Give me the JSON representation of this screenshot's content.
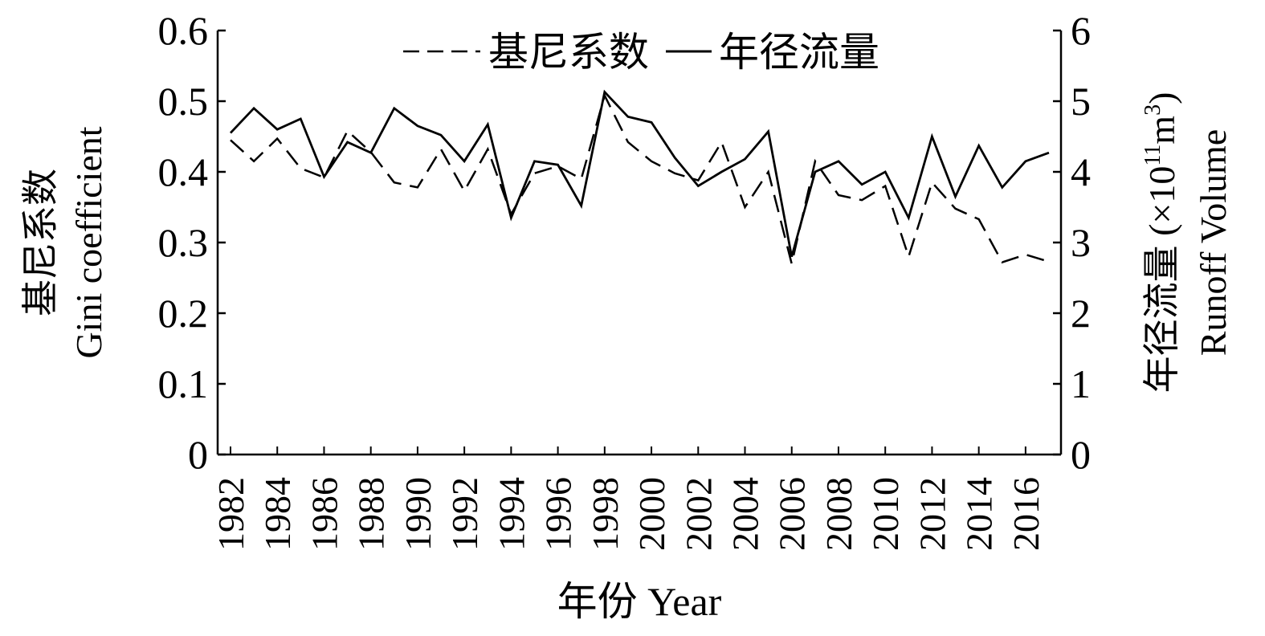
{
  "chart_data": {
    "type": "line",
    "legend": {
      "placement": "top-center",
      "items": [
        {
          "label": "基尼系数",
          "style": "dashed",
          "series": "gini"
        },
        {
          "label": "年径流量",
          "style": "solid",
          "series": "runoff"
        }
      ]
    },
    "x": {
      "label": "年份 Year",
      "tick_labels": [
        "1982",
        "1984",
        "1986",
        "1988",
        "1990",
        "1992",
        "1994",
        "1996",
        "1998",
        "2000",
        "2002",
        "2004",
        "2006",
        "2008",
        "2010",
        "2012",
        "2014",
        "2016"
      ],
      "years": [
        1982,
        1983,
        1984,
        1985,
        1986,
        1987,
        1988,
        1989,
        1990,
        1991,
        1992,
        1993,
        1994,
        1995,
        1996,
        1997,
        1998,
        1999,
        2000,
        2001,
        2002,
        2003,
        2004,
        2005,
        2006,
        2007,
        2008,
        2009,
        2010,
        2011,
        2012,
        2013,
        2014,
        2015,
        2016,
        2017
      ],
      "range": [
        1982,
        2017
      ]
    },
    "y_left": {
      "label_line1": "基尼系数",
      "label_line2": "Gini coefficient",
      "range": [
        0,
        0.6
      ],
      "tick_labels": [
        "0",
        "0.1",
        "0.2",
        "0.3",
        "0.4",
        "0.5",
        "0.6"
      ]
    },
    "y_right": {
      "label_line1": "年径流量 (×10",
      "label_exp1": "11",
      "label_unit": "m",
      "label_exp2": "3",
      "label_close": ")",
      "label_line2": "Runoff Volume",
      "range": [
        0,
        6
      ],
      "tick_labels": [
        "0",
        "1",
        "2",
        "3",
        "4",
        "5",
        "6"
      ]
    },
    "series": [
      {
        "key": "gini",
        "name": "基尼系数",
        "axis": "left",
        "style": "dashed",
        "values": [
          0.445,
          0.415,
          0.447,
          0.405,
          0.392,
          0.458,
          0.428,
          0.385,
          0.378,
          0.432,
          0.373,
          0.432,
          0.34,
          0.398,
          0.408,
          0.39,
          0.508,
          0.442,
          0.415,
          0.398,
          0.388,
          0.442,
          0.35,
          0.4,
          0.27,
          0.415,
          0.367,
          0.36,
          0.38,
          0.28,
          0.385,
          0.348,
          0.333,
          0.272,
          0.283,
          0.273
        ]
      },
      {
        "key": "runoff",
        "name": "年径流量",
        "axis": "right",
        "style": "solid",
        "values": [
          4.55,
          4.9,
          4.6,
          4.75,
          3.93,
          4.42,
          4.27,
          4.9,
          4.65,
          4.52,
          4.15,
          4.67,
          3.35,
          4.15,
          4.1,
          3.52,
          5.13,
          4.78,
          4.7,
          4.2,
          3.8,
          4.0,
          4.18,
          4.57,
          2.8,
          4.0,
          4.15,
          3.82,
          4.0,
          3.35,
          4.5,
          3.65,
          4.37,
          3.78,
          4.15,
          4.27
        ]
      }
    ]
  }
}
